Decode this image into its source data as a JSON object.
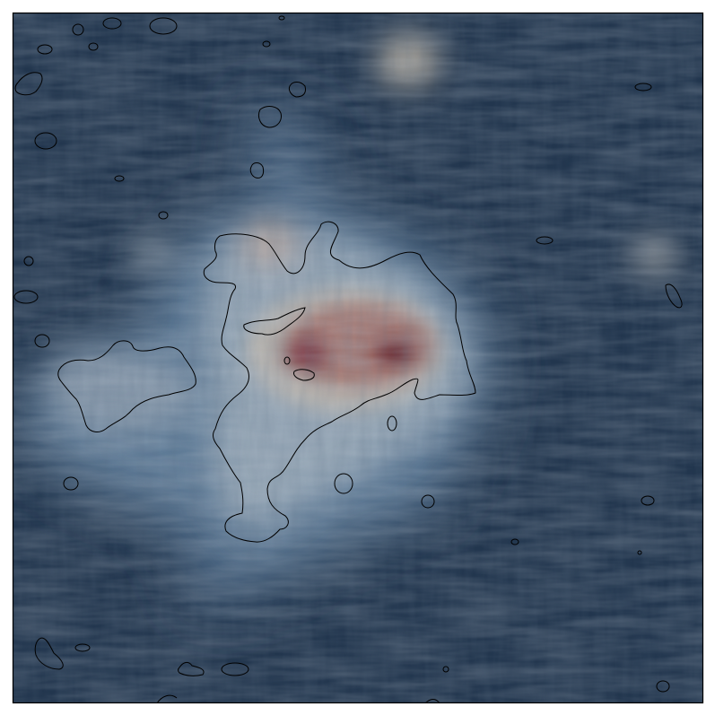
{
  "figure": {
    "kind": "line-integral-convolution field map with contours",
    "colormap": [
      "#1c3047",
      "#2b4560",
      "#5f7c98",
      "#9aaab8",
      "#c0b8ad",
      "#a2706a",
      "#6e2431",
      "#3e0f1e"
    ],
    "contour_color": "#000000",
    "frame_color": "#000000",
    "background_color": "#ffffff"
  }
}
